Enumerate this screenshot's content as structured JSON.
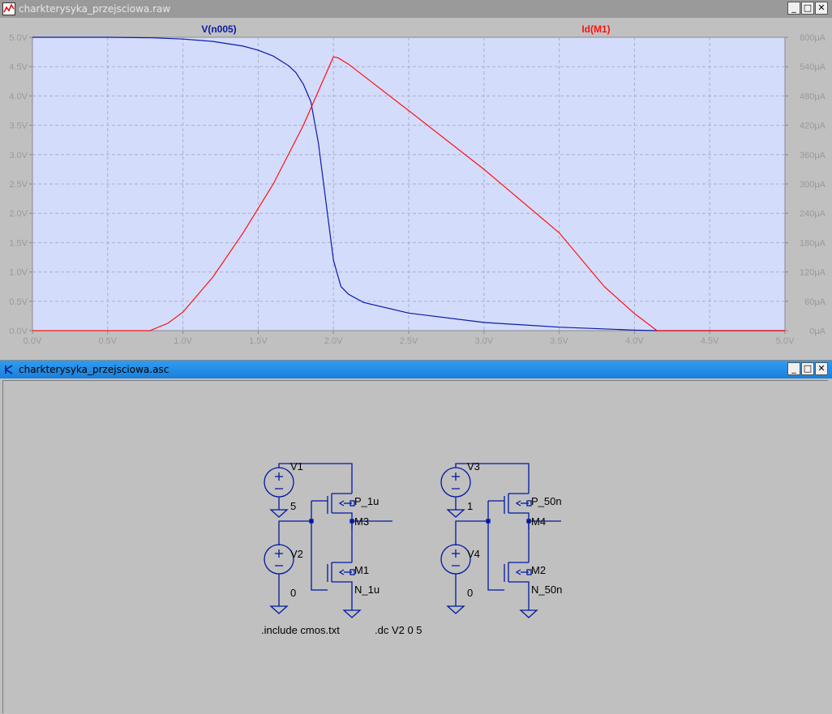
{
  "waveform_window": {
    "title": "charkterysyka_przejsciowa.raw",
    "icon": "waveform-app-icon",
    "buttons": {
      "minimize": "_",
      "maximize": "□",
      "close": "✕"
    }
  },
  "schematic_window": {
    "title": "charkterysyka_przejsciowa.asc",
    "icon": "schematic-app-icon",
    "buttons": {
      "minimize": "_",
      "maximize": "□",
      "close": "✕"
    }
  },
  "colors": {
    "plot_bg": "#d4dcfc",
    "grid": "#a8b0c8",
    "axis_text": "#9a9a9a",
    "series_v": "#0a1aa8",
    "series_id": "#ff1010",
    "wire": "#0018a0",
    "schematic_bg": "#c0c0c0"
  },
  "chart_data": {
    "type": "line",
    "xlabel": "",
    "xlim": [
      0,
      5.0
    ],
    "x_ticks": [
      "0.0V",
      "0.5V",
      "1.0V",
      "1.5V",
      "2.0V",
      "2.5V",
      "3.0V",
      "3.5V",
      "4.0V",
      "4.5V",
      "5.0V"
    ],
    "y_left_lim": [
      0,
      5.0
    ],
    "y_left_ticks": [
      "0.0V",
      "0.5V",
      "1.0V",
      "1.5V",
      "2.0V",
      "2.5V",
      "3.0V",
      "3.5V",
      "4.0V",
      "4.5V",
      "5.0V"
    ],
    "y_right_lim": [
      0,
      600
    ],
    "y_right_ticks": [
      "0μA",
      "60μA",
      "120μA",
      "180μA",
      "240μA",
      "300μA",
      "360μA",
      "420μA",
      "480μA",
      "540μA",
      "600μA"
    ],
    "grid": true,
    "series": [
      {
        "name": "V(n005)",
        "axis": "left",
        "x": [
          0,
          0.5,
          0.8,
          1.0,
          1.2,
          1.4,
          1.5,
          1.6,
          1.7,
          1.75,
          1.8,
          1.85,
          1.9,
          1.95,
          2.0,
          2.05,
          2.1,
          2.2,
          2.5,
          3.0,
          3.5,
          4.0,
          4.15,
          4.5,
          5.0
        ],
        "y": [
          5.0,
          5.0,
          4.99,
          4.97,
          4.93,
          4.85,
          4.78,
          4.68,
          4.52,
          4.4,
          4.2,
          3.9,
          3.2,
          2.2,
          1.2,
          0.75,
          0.62,
          0.48,
          0.3,
          0.14,
          0.06,
          0.01,
          0.0,
          0.0,
          0.0
        ]
      },
      {
        "name": "Id(M1)",
        "axis": "right",
        "x": [
          0,
          0.5,
          0.78,
          0.9,
          1.0,
          1.2,
          1.4,
          1.6,
          1.8,
          1.9,
          2.0,
          2.03,
          2.1,
          2.5,
          3.0,
          3.5,
          3.8,
          4.0,
          4.15,
          4.5,
          5.0
        ],
        "y": [
          0,
          0,
          0,
          15,
          38,
          110,
          200,
          300,
          420,
          490,
          560,
          558,
          545,
          450,
          330,
          200,
          90,
          35,
          0,
          0,
          0
        ]
      }
    ]
  },
  "schematic": {
    "labels": {
      "v1": "V1",
      "v1_val": "5",
      "v2": "V2",
      "v2_val": "0",
      "m3": "M3",
      "m3_model": "P_1u",
      "m1": "M1",
      "m1_model": "N_1u",
      "v3": "V3",
      "v3_val": "1",
      "v4": "V4",
      "v4_val": "0",
      "m4": "M4",
      "m4_model": "P_50n",
      "m2": "M2",
      "m2_model": "N_50n"
    },
    "directives": [
      ".include cmos.txt",
      ".dc V2 0 5"
    ]
  }
}
